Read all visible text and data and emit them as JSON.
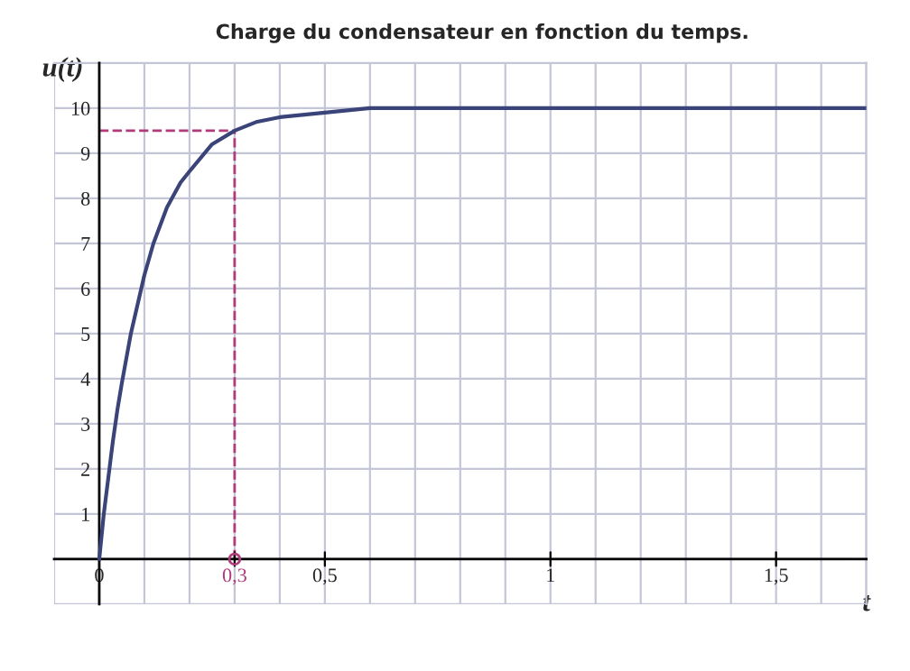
{
  "chart_data": {
    "type": "line",
    "title": "Charge du condensateur en fonction du temps.",
    "xlabel": "t",
    "ylabel": "u(t)",
    "x": [
      0,
      0.01,
      0.02,
      0.03,
      0.04,
      0.05,
      0.07,
      0.1,
      0.12,
      0.15,
      0.18,
      0.2,
      0.25,
      0.3,
      0.35,
      0.4,
      0.45,
      0.5,
      0.6,
      0.8,
      1.0,
      1.2,
      1.4,
      1.7
    ],
    "series": [
      {
        "color": "#3b4479",
        "values": [
          0,
          1.0,
          1.8,
          2.6,
          3.3,
          3.9,
          5.0,
          6.3,
          7.0,
          7.8,
          8.35,
          8.6,
          9.2,
          9.5,
          9.7,
          9.8,
          9.85,
          9.9,
          10,
          10,
          10,
          10,
          10,
          10
        ]
      },
      {
        "type": "scatter",
        "x": [
          0.3
        ],
        "values": [
          0
        ],
        "color": "#b03a7a",
        "marker": "circle"
      }
    ],
    "xlim": [
      -0.1,
      1.7
    ],
    "ylim": [
      -1,
      11
    ],
    "xticks": [
      {
        "value": -0.1,
        "label": null
      },
      {
        "value": 0,
        "label": "0"
      },
      {
        "value": 0.1,
        "label": null
      },
      {
        "value": 0.2,
        "label": null
      },
      {
        "value": 0.3,
        "label": "0,3"
      },
      {
        "value": 0.4,
        "label": null
      },
      {
        "value": 0.5,
        "label": "0,5"
      },
      {
        "value": 0.6,
        "label": null
      },
      {
        "value": 0.7,
        "label": null
      },
      {
        "value": 0.8,
        "label": null
      },
      {
        "value": 0.9,
        "label": null
      },
      {
        "value": 1,
        "label": "1"
      },
      {
        "value": 1.1,
        "label": null
      },
      {
        "value": 1.2,
        "label": null
      },
      {
        "value": 1.3,
        "label": null
      },
      {
        "value": 1.4,
        "label": null
      },
      {
        "value": 1.5,
        "label": "1,5"
      },
      {
        "value": 1.6,
        "label": null
      },
      {
        "value": 1.7,
        "label": null
      }
    ],
    "yticks": [
      {
        "value": -1,
        "label": null
      },
      {
        "value": 0,
        "label": null
      },
      1,
      2,
      3,
      4,
      5,
      6,
      7,
      8,
      9,
      10,
      {
        "value": 11,
        "label": null
      }
    ],
    "ref_lines": [
      {
        "axis": "x",
        "value": 0.3,
        "color": "#b03a7a",
        "line_style": "dashed"
      },
      {
        "axis": "y",
        "value": 9.5,
        "color": "#b03a7a",
        "line_style": "dashed"
      }
    ],
    "grid": true,
    "marker": "none",
    "line_style": "solid"
  }
}
